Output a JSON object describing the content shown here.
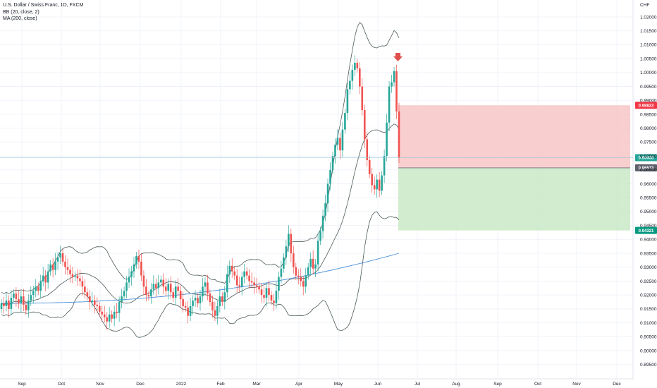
{
  "chart_data": {
    "type": "candlestick",
    "title": "U.S. Dollar / Swiss Franc, 1D, FXCM",
    "indicators": [
      "BB (20, close, 2)",
      "MA (200, close)"
    ],
    "currency": "CHF",
    "ylim": [
      0.8985,
      1.025
    ],
    "y_ticks": [
      "1.02000",
      "1.01500",
      "1.01000",
      "1.00500",
      "1.00000",
      "0.99500",
      "0.99000",
      "0.98500",
      "0.98000",
      "0.97500",
      "0.97000",
      "0.96500",
      "0.96000",
      "0.95500",
      "0.95000",
      "0.94500",
      "0.94000",
      "0.93500",
      "0.93000",
      "0.92500",
      "0.92000",
      "0.91500",
      "0.91000",
      "0.90500",
      "0.90000",
      "0.89500"
    ],
    "x_labels": [
      "Sep",
      "Oct",
      "Nov",
      "Dec",
      "2022",
      "Feb",
      "Mar",
      "Apr",
      "May",
      "Jun",
      "Jul",
      "Aug",
      "Sep",
      "Oct",
      "Nov",
      "Dec"
    ],
    "price_labels": {
      "stop": "0.98823",
      "current": "0.96938",
      "entry": "0.96573",
      "target": "0.94321"
    },
    "position": {
      "stop": 0.98823,
      "entry": 0.96573,
      "target": 0.94321,
      "current": 0.96938,
      "direction": "short"
    },
    "colors": {
      "up": "#26a69a",
      "down": "#ef5350",
      "bb": "#4a5a55",
      "ma": "#4a90d9",
      "risk": "#f7c5c5",
      "reward": "#c9e9c5",
      "arrow": "#e0504d",
      "stop_tag": "#f23645",
      "current_tag": "#26a69a",
      "entry_tag": "#5d606b",
      "target_tag": "#089981"
    },
    "ohlc_close": [
      0.917,
      0.916,
      0.918,
      0.915,
      0.919,
      0.9205,
      0.9185,
      0.917,
      0.9195,
      0.9165,
      0.9145,
      0.918,
      0.92,
      0.9215,
      0.923,
      0.9215,
      0.925,
      0.927,
      0.9245,
      0.9285,
      0.931,
      0.929,
      0.932,
      0.9335,
      0.935,
      0.932,
      0.93,
      0.929,
      0.9275,
      0.9265,
      0.927,
      0.926,
      0.925,
      0.923,
      0.921,
      0.9195,
      0.9175,
      0.918,
      0.9165,
      0.916,
      0.914,
      0.913,
      0.912,
      0.9105,
      0.913,
      0.9115,
      0.914,
      0.9135,
      0.9175,
      0.9195,
      0.9215,
      0.9245,
      0.9265,
      0.9285,
      0.931,
      0.934,
      0.932,
      0.927,
      0.923,
      0.92,
      0.9195,
      0.922,
      0.924,
      0.9225,
      0.9245,
      0.9255,
      0.923,
      0.9215,
      0.924,
      0.921,
      0.919,
      0.923,
      0.9215,
      0.9185,
      0.916,
      0.9155,
      0.9125,
      0.916,
      0.918,
      0.919,
      0.917,
      0.9195,
      0.923,
      0.9245,
      0.9205,
      0.9175,
      0.9145,
      0.9125,
      0.916,
      0.9195,
      0.9175,
      0.921,
      0.9275,
      0.9305,
      0.9285,
      0.927,
      0.9235,
      0.923,
      0.9265,
      0.9285,
      0.927,
      0.925,
      0.9245,
      0.9235,
      0.923,
      0.922,
      0.92,
      0.919,
      0.9225,
      0.92,
      0.918,
      0.917,
      0.9215,
      0.9265,
      0.9295,
      0.9335,
      0.9375,
      0.942,
      0.935,
      0.93,
      0.927,
      0.9265,
      0.925,
      0.923,
      0.927,
      0.93,
      0.933,
      0.9295,
      0.931,
      0.9395,
      0.943,
      0.9485,
      0.953,
      0.96,
      0.965,
      0.97,
      0.974,
      0.9765,
      0.972,
      0.9795,
      0.9855,
      0.994,
      0.997,
      1.001,
      1.0035,
      1.0015,
      0.995,
      0.9865,
      0.976,
      0.9685,
      0.9635,
      0.9595,
      0.958,
      0.9615,
      0.9575,
      0.963,
      0.97,
      0.982,
      0.995,
      0.9965,
      1.0005,
      0.986,
      0.9694
    ]
  }
}
